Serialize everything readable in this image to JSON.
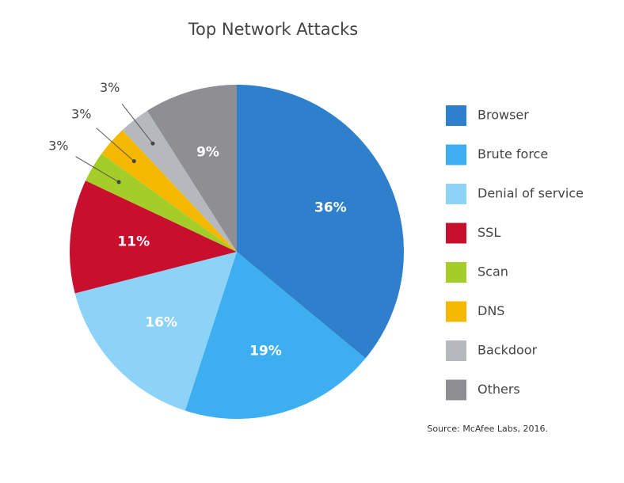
{
  "chart_data": {
    "type": "pie",
    "title": "Top Network Attacks",
    "categories": [
      "Browser",
      "Brute force",
      "Denial of service",
      "SSL",
      "Scan",
      "DNS",
      "Backdoor",
      "Others"
    ],
    "values": [
      36,
      19,
      16,
      11,
      3,
      3,
      3,
      9
    ],
    "value_labels": [
      "36%",
      "19%",
      "16%",
      "11%",
      "3%",
      "3%",
      "3%",
      "9%"
    ],
    "colors": [
      "#2e7fcc",
      "#3daef0",
      "#8dd3f8",
      "#c8102e",
      "#a5cd2a",
      "#f5b800",
      "#b5b9be",
      "#8e8e93"
    ],
    "legend": "right",
    "source": "Source: McAfee Labs, 2016."
  }
}
